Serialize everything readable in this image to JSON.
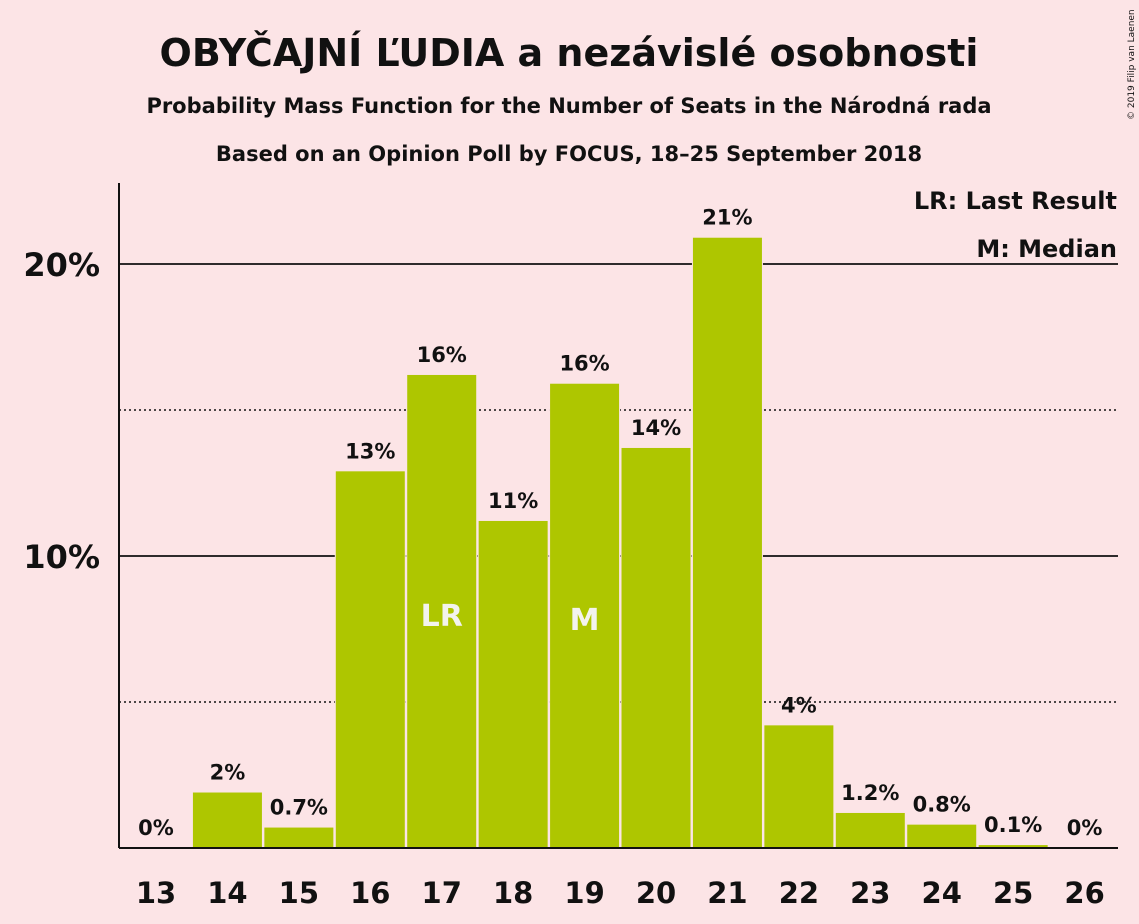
{
  "chart_data": {
    "type": "bar",
    "title": "OBYČAJNÍ ĽUDIA a nezávislé osobnosti",
    "subtitle": "Probability Mass Function for the Number of Seats in the Národná rada",
    "subtitle2": "Based on an Opinion Poll by FOCUS, 18–25 September 2018",
    "copyright": "© 2019 Filip van Laenen",
    "categories": [
      "13",
      "14",
      "15",
      "16",
      "17",
      "18",
      "19",
      "20",
      "21",
      "22",
      "23",
      "24",
      "25",
      "26"
    ],
    "values": [
      0,
      1.9,
      0.7,
      12.9,
      16.2,
      11.2,
      15.9,
      13.7,
      20.9,
      4.2,
      1.2,
      0.8,
      0.1,
      0
    ],
    "value_labels": [
      "0%",
      "2%",
      "0.7%",
      "13%",
      "16%",
      "11%",
      "16%",
      "14%",
      "21%",
      "4%",
      "1.2%",
      "0.8%",
      "0.1%",
      "0%"
    ],
    "ylim": [
      0,
      22.8
    ],
    "yticks": [
      10,
      20
    ],
    "ytick_labels": [
      "10%",
      "20%"
    ],
    "gridlines_minor": [
      5,
      15
    ],
    "bar_color": "#AEC600",
    "background_color": "#FCE4E6",
    "annotations": {
      "last_result": {
        "category": "17",
        "label": "LR"
      },
      "median": {
        "category": "19",
        "label": "M"
      }
    },
    "legend": {
      "position": "top-right",
      "items": [
        "LR: Last Result",
        "M: Median"
      ]
    }
  }
}
